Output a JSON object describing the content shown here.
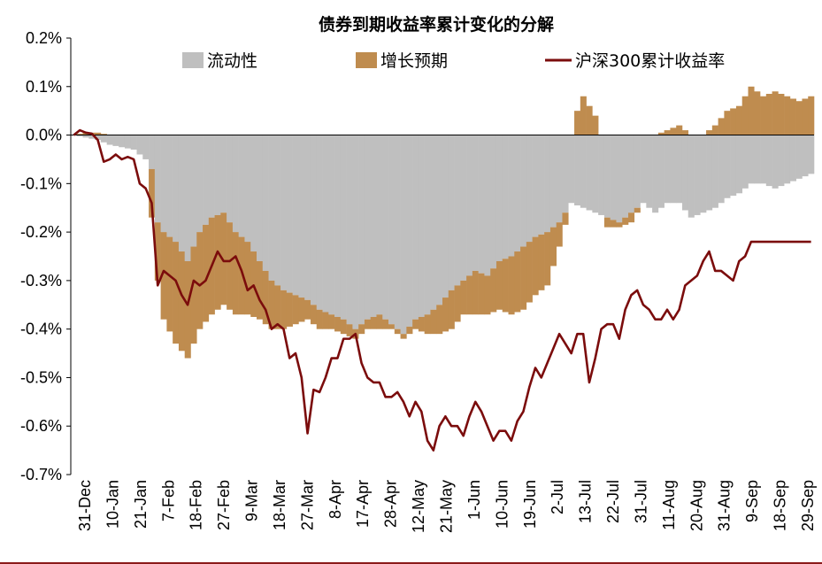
{
  "chart_data": {
    "type": "area",
    "title": "债券到期收益率累计变化的分解",
    "xlabel": "",
    "ylabel": "",
    "ylim": [
      -0.7,
      0.2
    ],
    "yticks": [
      0.2,
      0.1,
      0.0,
      -0.1,
      -0.2,
      -0.3,
      -0.4,
      -0.5,
      -0.6,
      -0.7
    ],
    "ytick_labels": [
      "0.2%",
      "0.1%",
      "0.0%",
      "-0.1%",
      "-0.2%",
      "-0.3%",
      "-0.4%",
      "-0.5%",
      "-0.6%",
      "-0.7%"
    ],
    "x_tick_labels": [
      "31-Dec",
      "10-Jan",
      "21-Jan",
      "7-Feb",
      "18-Feb",
      "27-Feb",
      "9-Mar",
      "18-Mar",
      "27-Mar",
      "8-Apr",
      "17-Apr",
      "28-Apr",
      "12-May",
      "21-May",
      "1-Jun",
      "10-Jun",
      "19-Jun",
      "2-Jul",
      "13-Jul",
      "22-Jul",
      "31-Jul",
      "11-Aug",
      "20-Aug",
      "31-Aug",
      "9-Sep",
      "18-Sep",
      "29-Sep"
    ],
    "grid": false,
    "legend_position": "top",
    "colors": {
      "liquidity": "#bfbfbf",
      "growth": "#bf8c4f",
      "hs300": "#7b0c0c"
    },
    "series": [
      {
        "name": "流动性",
        "kind": "stacked-column",
        "anchors": [
          [
            0,
            0.0
          ],
          [
            2,
            -0.005
          ],
          [
            4,
            -0.01
          ],
          [
            6,
            -0.02
          ],
          [
            8,
            -0.025
          ],
          [
            10,
            -0.03
          ],
          [
            12,
            -0.05
          ],
          [
            13,
            -0.07
          ],
          [
            14,
            -0.18
          ],
          [
            15,
            -0.2
          ],
          [
            17,
            -0.22
          ],
          [
            19,
            -0.26
          ],
          [
            21,
            -0.2
          ],
          [
            23,
            -0.17
          ],
          [
            25,
            -0.16
          ],
          [
            27,
            -0.2
          ],
          [
            29,
            -0.22
          ],
          [
            31,
            -0.26
          ],
          [
            33,
            -0.3
          ],
          [
            35,
            -0.32
          ],
          [
            37,
            -0.33
          ],
          [
            39,
            -0.34
          ],
          [
            41,
            -0.36
          ],
          [
            43,
            -0.37
          ],
          [
            45,
            -0.38
          ],
          [
            47,
            -0.4
          ],
          [
            49,
            -0.38
          ],
          [
            51,
            -0.37
          ],
          [
            53,
            -0.39
          ],
          [
            55,
            -0.41
          ],
          [
            57,
            -0.38
          ],
          [
            59,
            -0.37
          ],
          [
            61,
            -0.35
          ],
          [
            63,
            -0.32
          ],
          [
            65,
            -0.3
          ],
          [
            67,
            -0.28
          ],
          [
            69,
            -0.29
          ],
          [
            71,
            -0.26
          ],
          [
            73,
            -0.25
          ],
          [
            75,
            -0.23
          ],
          [
            77,
            -0.21
          ],
          [
            79,
            -0.2
          ],
          [
            81,
            -0.18
          ],
          [
            83,
            -0.14
          ],
          [
            85,
            -0.15
          ],
          [
            87,
            -0.16
          ],
          [
            89,
            -0.17
          ],
          [
            91,
            -0.18
          ],
          [
            93,
            -0.16
          ],
          [
            95,
            -0.14
          ],
          [
            97,
            -0.16
          ],
          [
            99,
            -0.14
          ],
          [
            101,
            -0.14
          ],
          [
            103,
            -0.17
          ],
          [
            105,
            -0.16
          ],
          [
            107,
            -0.15
          ],
          [
            109,
            -0.13
          ],
          [
            111,
            -0.12
          ],
          [
            113,
            -0.1
          ],
          [
            115,
            -0.1
          ],
          [
            117,
            -0.11
          ],
          [
            119,
            -0.1
          ],
          [
            121,
            -0.09
          ],
          [
            123,
            -0.08
          ]
        ]
      },
      {
        "name": "增长预期",
        "kind": "stacked-column",
        "anchors": [
          [
            0,
            0.0
          ],
          [
            2,
            0.005
          ],
          [
            4,
            0.005
          ],
          [
            6,
            0.0
          ],
          [
            8,
            0.0
          ],
          [
            10,
            0.0
          ],
          [
            12,
            0.0
          ],
          [
            13,
            -0.1
          ],
          [
            14,
            -0.12
          ],
          [
            15,
            -0.18
          ],
          [
            17,
            -0.21
          ],
          [
            19,
            -0.2
          ],
          [
            21,
            -0.2
          ],
          [
            23,
            -0.2
          ],
          [
            25,
            -0.19
          ],
          [
            27,
            -0.17
          ],
          [
            29,
            -0.15
          ],
          [
            31,
            -0.12
          ],
          [
            33,
            -0.1
          ],
          [
            35,
            -0.08
          ],
          [
            37,
            -0.06
          ],
          [
            39,
            -0.04
          ],
          [
            41,
            -0.04
          ],
          [
            43,
            -0.03
          ],
          [
            45,
            -0.03
          ],
          [
            47,
            -0.02
          ],
          [
            49,
            -0.02
          ],
          [
            51,
            -0.03
          ],
          [
            53,
            -0.01
          ],
          [
            55,
            -0.01
          ],
          [
            57,
            -0.02
          ],
          [
            59,
            -0.04
          ],
          [
            61,
            -0.06
          ],
          [
            63,
            -0.08
          ],
          [
            65,
            -0.07
          ],
          [
            67,
            -0.09
          ],
          [
            69,
            -0.08
          ],
          [
            71,
            -0.1
          ],
          [
            73,
            -0.12
          ],
          [
            75,
            -0.13
          ],
          [
            77,
            -0.12
          ],
          [
            79,
            -0.11
          ],
          [
            81,
            -0.05
          ],
          [
            83,
            0.0
          ],
          [
            84,
            0.05
          ],
          [
            85,
            0.08
          ],
          [
            86,
            0.06
          ],
          [
            87,
            0.04
          ],
          [
            88,
            0.0
          ],
          [
            89,
            -0.02
          ],
          [
            91,
            -0.01
          ],
          [
            93,
            -0.02
          ],
          [
            95,
            0.0
          ],
          [
            97,
            0.0
          ],
          [
            99,
            0.01
          ],
          [
            101,
            0.02
          ],
          [
            103,
            0.0
          ],
          [
            105,
            0.0
          ],
          [
            107,
            0.02
          ],
          [
            109,
            0.05
          ],
          [
            111,
            0.06
          ],
          [
            113,
            0.1
          ],
          [
            115,
            0.08
          ],
          [
            117,
            0.09
          ],
          [
            119,
            0.08
          ],
          [
            121,
            0.07
          ],
          [
            123,
            0.08
          ]
        ]
      },
      {
        "name": "沪深300累计收益率",
        "kind": "line",
        "anchors": [
          [
            0,
            0.0
          ],
          [
            1,
            0.01
          ],
          [
            2,
            0.005
          ],
          [
            3,
            0.003
          ],
          [
            4,
            -0.01
          ],
          [
            5,
            -0.055
          ],
          [
            6,
            -0.05
          ],
          [
            7,
            -0.04
          ],
          [
            8,
            -0.05
          ],
          [
            9,
            -0.045
          ],
          [
            10,
            -0.05
          ],
          [
            11,
            -0.1
          ],
          [
            12,
            -0.11
          ],
          [
            13,
            -0.14
          ],
          [
            14,
            -0.31
          ],
          [
            15,
            -0.28
          ],
          [
            16,
            -0.29
          ],
          [
            17,
            -0.3
          ],
          [
            18,
            -0.33
          ],
          [
            19,
            -0.35
          ],
          [
            20,
            -0.3
          ],
          [
            21,
            -0.31
          ],
          [
            22,
            -0.3
          ],
          [
            23,
            -0.27
          ],
          [
            24,
            -0.24
          ],
          [
            25,
            -0.26
          ],
          [
            26,
            -0.26
          ],
          [
            27,
            -0.25
          ],
          [
            28,
            -0.28
          ],
          [
            29,
            -0.32
          ],
          [
            30,
            -0.31
          ],
          [
            31,
            -0.34
          ],
          [
            32,
            -0.36
          ],
          [
            33,
            -0.4
          ],
          [
            34,
            -0.39
          ],
          [
            35,
            -0.4
          ],
          [
            36,
            -0.46
          ],
          [
            37,
            -0.45
          ],
          [
            38,
            -0.5
          ],
          [
            39,
            -0.615
          ],
          [
            40,
            -0.525
          ],
          [
            41,
            -0.53
          ],
          [
            42,
            -0.5
          ],
          [
            43,
            -0.46
          ],
          [
            44,
            -0.46
          ],
          [
            45,
            -0.42
          ],
          [
            46,
            -0.42
          ],
          [
            47,
            -0.41
          ],
          [
            48,
            -0.47
          ],
          [
            49,
            -0.5
          ],
          [
            50,
            -0.51
          ],
          [
            51,
            -0.51
          ],
          [
            52,
            -0.54
          ],
          [
            53,
            -0.54
          ],
          [
            54,
            -0.53
          ],
          [
            55,
            -0.55
          ],
          [
            56,
            -0.58
          ],
          [
            57,
            -0.55
          ],
          [
            58,
            -0.57
          ],
          [
            59,
            -0.63
          ],
          [
            60,
            -0.65
          ],
          [
            61,
            -0.6
          ],
          [
            62,
            -0.58
          ],
          [
            63,
            -0.6
          ],
          [
            64,
            -0.6
          ],
          [
            65,
            -0.62
          ],
          [
            66,
            -0.58
          ],
          [
            67,
            -0.55
          ],
          [
            68,
            -0.57
          ],
          [
            69,
            -0.6
          ],
          [
            70,
            -0.63
          ],
          [
            71,
            -0.61
          ],
          [
            72,
            -0.61
          ],
          [
            73,
            -0.63
          ],
          [
            74,
            -0.59
          ],
          [
            75,
            -0.57
          ],
          [
            76,
            -0.52
          ],
          [
            77,
            -0.48
          ],
          [
            78,
            -0.5
          ],
          [
            79,
            -0.47
          ],
          [
            80,
            -0.44
          ],
          [
            81,
            -0.41
          ],
          [
            82,
            -0.43
          ],
          [
            83,
            -0.45
          ],
          [
            84,
            -0.41
          ],
          [
            85,
            -0.41
          ],
          [
            86,
            -0.51
          ],
          [
            87,
            -0.46
          ],
          [
            88,
            -0.4
          ],
          [
            89,
            -0.39
          ],
          [
            90,
            -0.39
          ],
          [
            91,
            -0.42
          ],
          [
            92,
            -0.36
          ],
          [
            93,
            -0.33
          ],
          [
            94,
            -0.32
          ],
          [
            95,
            -0.35
          ],
          [
            96,
            -0.36
          ],
          [
            97,
            -0.38
          ],
          [
            98,
            -0.38
          ],
          [
            99,
            -0.36
          ],
          [
            100,
            -0.38
          ],
          [
            101,
            -0.36
          ],
          [
            102,
            -0.31
          ],
          [
            103,
            -0.3
          ],
          [
            104,
            -0.29
          ],
          [
            105,
            -0.26
          ],
          [
            106,
            -0.24
          ],
          [
            107,
            -0.28
          ],
          [
            108,
            -0.28
          ],
          [
            109,
            -0.29
          ],
          [
            110,
            -0.3
          ],
          [
            111,
            -0.26
          ],
          [
            112,
            -0.25
          ],
          [
            113,
            -0.22
          ]
        ]
      }
    ]
  }
}
